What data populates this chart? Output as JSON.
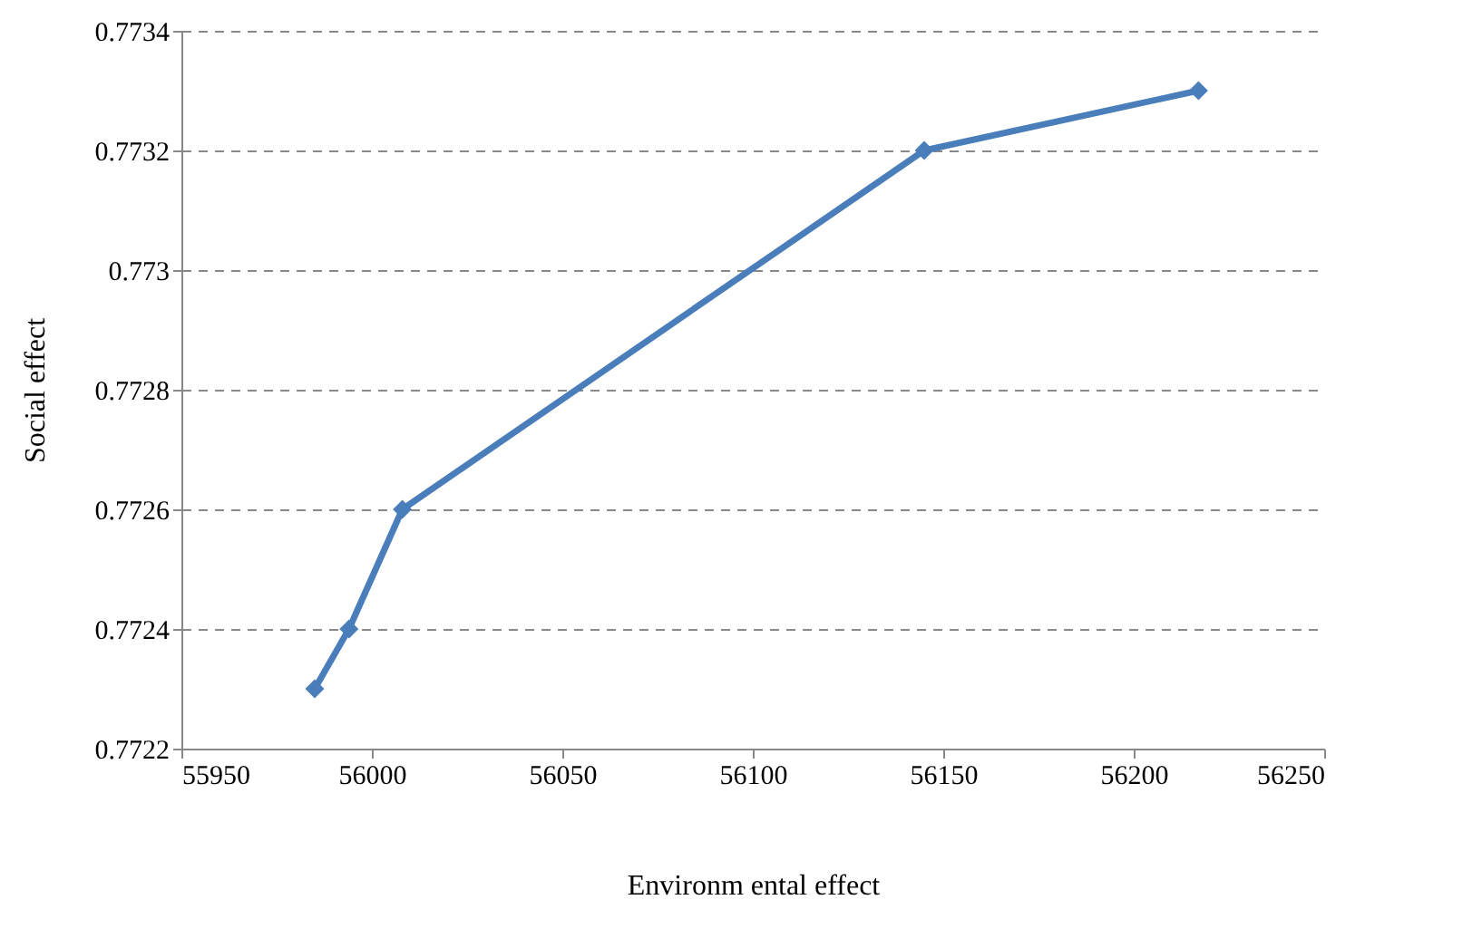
{
  "chart_data": {
    "type": "line",
    "xlabel": "Environm ental effect",
    "ylabel": "Social effect",
    "x": [
      55985,
      55994,
      56008,
      56145,
      56217
    ],
    "series": [
      {
        "color": "#4a7ebb",
        "values": [
          0.7723,
          0.7724,
          0.7726,
          0.7732,
          0.7733
        ]
      }
    ],
    "xlim": [
      55950,
      56250
    ],
    "xticks": [
      55950,
      56000,
      56050,
      56100,
      56150,
      56200,
      56250
    ],
    "ylim": [
      0.7722,
      0.7734
    ],
    "yticks": [
      0.7722,
      0.7724,
      0.7726,
      0.7728,
      0.773,
      0.7732,
      0.7734
    ],
    "grid": "y",
    "marker": "diamond",
    "line_style": "solid"
  }
}
